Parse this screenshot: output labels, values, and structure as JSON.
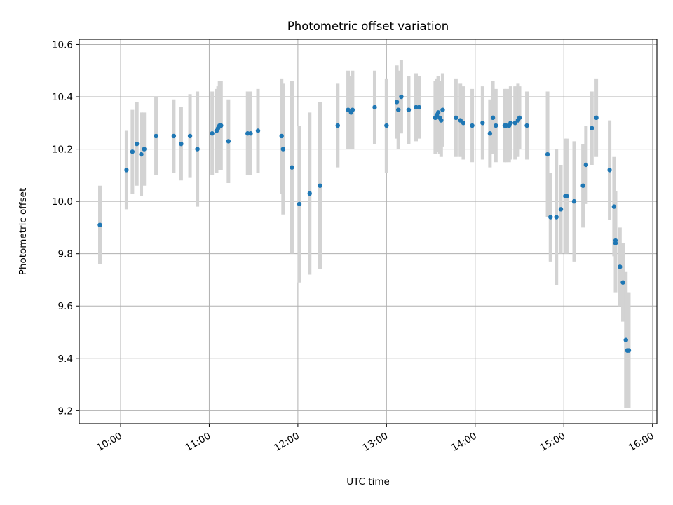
{
  "chart_data": {
    "type": "scatter",
    "title": "Photometric offset variation",
    "xlabel": "UTC time",
    "ylabel": "Photometric offset",
    "x_ticks": [
      "10:00",
      "11:00",
      "12:00",
      "13:00",
      "14:00",
      "15:00",
      "16:00"
    ],
    "y_ticks": [
      "9.2",
      "9.4",
      "9.6",
      "9.8",
      "10.0",
      "10.2",
      "10.4",
      "10.6"
    ],
    "xlim": [
      "09:32",
      "16:03"
    ],
    "ylim": [
      9.15,
      10.62
    ],
    "grid": true,
    "colors": {
      "points": "#1f77b4",
      "error_bars": "#d3d3d3",
      "grid": "#b0b0b0"
    },
    "series": [
      {
        "x": [
          "09:46",
          "10:04",
          "10:08",
          "10:11",
          "10:14",
          "10:16",
          "10:24",
          "10:36",
          "10:41",
          "10:47",
          "10:52",
          "11:02",
          "11:05",
          "11:06",
          "11:07",
          "11:08",
          "11:13",
          "11:26",
          "11:28",
          "11:33",
          "11:49",
          "11:50",
          "11:56",
          "12:01",
          "12:08",
          "12:15",
          "12:27",
          "12:34",
          "12:36",
          "12:37",
          "12:52",
          "13:00",
          "13:07",
          "13:08",
          "13:10",
          "13:15",
          "13:20",
          "13:22",
          "13:33",
          "13:34",
          "13:35",
          "13:36",
          "13:37",
          "13:38",
          "13:47",
          "13:50",
          "13:52",
          "13:58",
          "14:05",
          "14:10",
          "14:12",
          "14:14",
          "14:20",
          "14:21",
          "14:23",
          "14:24",
          "14:27",
          "14:29",
          "14:30",
          "14:35",
          "14:49",
          "14:51",
          "14:55",
          "14:58",
          "15:01",
          "15:02",
          "15:07",
          "15:13",
          "15:15",
          "15:19",
          "15:22",
          "15:31",
          "15:34",
          "15:35",
          "15:35",
          "15:38",
          "15:40",
          "15:42",
          "15:43",
          "15:43",
          "15:44"
        ],
        "y": [
          9.91,
          10.12,
          10.19,
          10.22,
          10.18,
          10.2,
          10.25,
          10.25,
          10.22,
          10.25,
          10.2,
          10.26,
          10.27,
          10.28,
          10.29,
          10.29,
          10.23,
          10.26,
          10.26,
          10.27,
          10.25,
          10.2,
          10.13,
          9.99,
          10.03,
          10.06,
          10.29,
          10.35,
          10.34,
          10.35,
          10.36,
          10.29,
          10.38,
          10.35,
          10.4,
          10.35,
          10.36,
          10.36,
          10.32,
          10.33,
          10.34,
          10.32,
          10.31,
          10.35,
          10.32,
          10.31,
          10.3,
          10.29,
          10.3,
          10.26,
          10.32,
          10.29,
          10.29,
          10.29,
          10.29,
          10.3,
          10.3,
          10.31,
          10.32,
          10.29,
          10.18,
          9.94,
          9.94,
          9.97,
          10.02,
          10.02,
          10.0,
          10.06,
          10.14,
          10.28,
          10.32,
          10.12,
          9.98,
          9.85,
          9.84,
          9.75,
          9.69,
          9.47,
          9.43,
          9.43,
          9.43
        ],
        "err": [
          0.15,
          0.15,
          0.16,
          0.16,
          0.16,
          0.14,
          0.15,
          0.14,
          0.14,
          0.16,
          0.22,
          0.16,
          0.16,
          0.16,
          0.17,
          0.17,
          0.16,
          0.16,
          0.16,
          0.16,
          0.22,
          0.25,
          0.33,
          0.3,
          0.31,
          0.32,
          0.16,
          0.15,
          0.14,
          0.15,
          0.14,
          0.18,
          0.14,
          0.15,
          0.14,
          0.13,
          0.13,
          0.12,
          0.14,
          0.14,
          0.14,
          0.14,
          0.14,
          0.14,
          0.15,
          0.14,
          0.14,
          0.14,
          0.14,
          0.13,
          0.14,
          0.14,
          0.14,
          0.14,
          0.14,
          0.14,
          0.14,
          0.14,
          0.12,
          0.13,
          0.24,
          0.17,
          0.26,
          0.17,
          0.22,
          0.22,
          0.23,
          0.16,
          0.15,
          0.14,
          0.15,
          0.19,
          0.19,
          0.19,
          0.19,
          0.15,
          0.15,
          0.26,
          0.22,
          0.22,
          0.22
        ]
      }
    ]
  }
}
